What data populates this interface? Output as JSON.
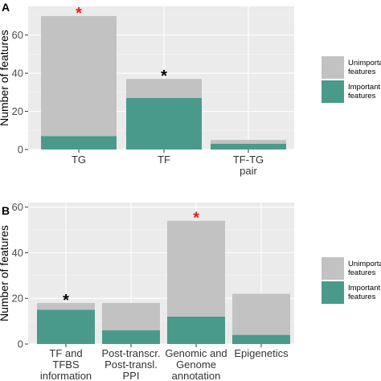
{
  "colors": {
    "panel_bg": "#ebebeb",
    "grid_major": "#ffffff",
    "grid_minor": "#f5f5f5",
    "unimportant": "#c2c2c2",
    "important": "#4a9a8c",
    "star_red": "#e41a1c",
    "star_black": "#000000"
  },
  "chart_data": [
    {
      "type": "bar",
      "stacked": true,
      "panel_label": "A",
      "ylabel": "Number of features",
      "ylim": [
        0,
        75
      ],
      "yticks": [
        0,
        20,
        40,
        60
      ],
      "categories": [
        "TG",
        "TF",
        "TF-TG pair"
      ],
      "category_lines": [
        [
          "TG"
        ],
        [
          "TF"
        ],
        [
          "TF-TG",
          "pair"
        ]
      ],
      "series": [
        {
          "name": "Important features",
          "values": [
            7,
            27,
            3
          ]
        },
        {
          "name": "Unimportant features",
          "values": [
            63,
            10,
            2
          ]
        }
      ],
      "totals": [
        70,
        37,
        5
      ],
      "annotations": [
        {
          "category": "TG",
          "text": "*",
          "color": "red"
        },
        {
          "category": "TF",
          "text": "*",
          "color": "black"
        }
      ],
      "legend": {
        "position": "right",
        "entries": [
          {
            "key": "unimportant",
            "lines": [
              "Unimportant",
              "features"
            ]
          },
          {
            "key": "important",
            "lines": [
              "Important",
              "features"
            ]
          }
        ]
      },
      "grid": true
    },
    {
      "type": "bar",
      "stacked": true,
      "panel_label": "B",
      "ylabel": "Number of features",
      "ylim": [
        0,
        62
      ],
      "yticks": [
        0,
        20,
        40,
        60
      ],
      "categories": [
        "TF and TFBS information",
        "Post-transcr. Post-transl. PPI",
        "Genomic and Genome annotation",
        "Epigenetics"
      ],
      "category_lines": [
        [
          "TF and",
          "TFBS",
          "information"
        ],
        [
          "Post-transcr.",
          "Post-transl.",
          "PPI"
        ],
        [
          "Genomic and",
          "Genome",
          "annotation"
        ],
        [
          "Epigenetics"
        ]
      ],
      "series": [
        {
          "name": "Important features",
          "values": [
            15,
            6,
            12,
            4
          ]
        },
        {
          "name": "Unimportant features",
          "values": [
            3,
            12,
            42,
            18
          ]
        }
      ],
      "totals": [
        18,
        18,
        54,
        22
      ],
      "annotations": [
        {
          "category": "TF and TFBS information",
          "text": "*",
          "color": "black"
        },
        {
          "category": "Genomic and Genome annotation",
          "text": "*",
          "color": "red"
        }
      ],
      "legend": {
        "position": "right",
        "entries": [
          {
            "key": "unimportant",
            "lines": [
              "Unimportant",
              "features"
            ]
          },
          {
            "key": "important",
            "lines": [
              "Important",
              "features"
            ]
          }
        ]
      },
      "grid": true
    }
  ]
}
